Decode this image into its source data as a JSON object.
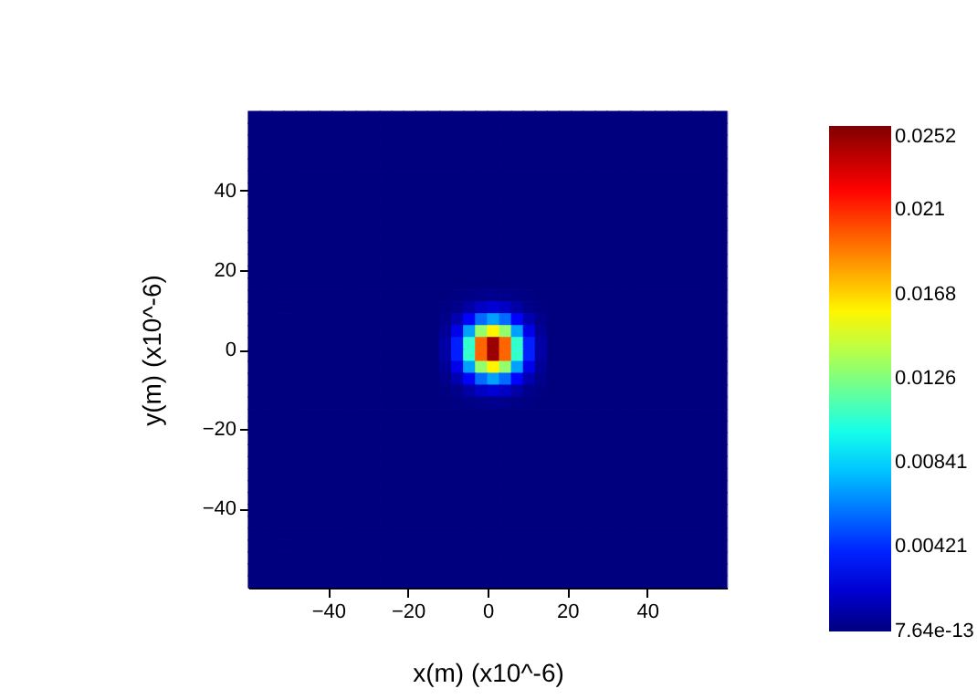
{
  "chart_data": {
    "type": "heatmap",
    "xlabel": "x(m) (x10^-6)",
    "ylabel": "y(m) (x10^-6)",
    "x": [
      -58.5,
      -55.5,
      -52.5,
      -49.5,
      -46.5,
      -43.5,
      -40.5,
      -37.5,
      -34.5,
      -31.5,
      -28.5,
      -25.5,
      -22.5,
      -19.5,
      -16.5,
      -13.5,
      -10.5,
      -7.5,
      -4.5,
      -1.5,
      1.5,
      4.5,
      7.5,
      10.5,
      13.5,
      16.5,
      19.5,
      22.5,
      25.5,
      28.5,
      31.5,
      34.5,
      37.5,
      40.5,
      43.5,
      46.5,
      49.5,
      52.5,
      55.5,
      58.5
    ],
    "y": [
      58.5,
      55.5,
      52.5,
      49.5,
      46.5,
      43.5,
      40.5,
      37.5,
      34.5,
      31.5,
      28.5,
      25.5,
      22.5,
      19.5,
      16.5,
      13.5,
      10.5,
      7.5,
      4.5,
      1.5,
      -1.5,
      -4.5,
      -7.5,
      -10.5,
      -13.5,
      -16.5,
      -19.5,
      -22.5,
      -25.5,
      -28.5,
      -31.5,
      -34.5,
      -37.5,
      -40.5,
      -43.5,
      -46.5,
      -49.5,
      -52.5,
      -55.5,
      -58.5
    ],
    "xlim": [
      -60,
      60
    ],
    "xticks": [
      -40,
      -20,
      0,
      20,
      40
    ],
    "ylim": [
      -60,
      60
    ],
    "yticks": [
      -40,
      -20,
      0,
      20,
      40
    ],
    "clim": [
      0,
      0.0252
    ],
    "cticks": [
      7.64e-13,
      0.00421,
      0.00841,
      0.0126,
      0.0168,
      0.021,
      0.0252
    ],
    "grid": false,
    "cells": [
      [
        0,
        0,
        0,
        0,
        0,
        0,
        0,
        0,
        0,
        0,
        0,
        0,
        0,
        0,
        0,
        0,
        0,
        0,
        0,
        0,
        0,
        0,
        0,
        0,
        0,
        0,
        0,
        0,
        0,
        0,
        0,
        0,
        0,
        0,
        0,
        0,
        0,
        0,
        0,
        0
      ],
      [
        0,
        0,
        0,
        0,
        0,
        0,
        0,
        0,
        0,
        0,
        0,
        0,
        0,
        0,
        0,
        0,
        0,
        0,
        0,
        0,
        0,
        0,
        0,
        0,
        0,
        0,
        0,
        0,
        0,
        0,
        0,
        0,
        0,
        0,
        0,
        0,
        0,
        0,
        0,
        0
      ],
      [
        0,
        0,
        0,
        0,
        0,
        0,
        0,
        0,
        0,
        0,
        0,
        0,
        0,
        0,
        0,
        0,
        0,
        0,
        0,
        0,
        0,
        0,
        0,
        0,
        0,
        0,
        0,
        0,
        0,
        0,
        0,
        0,
        0,
        0,
        0,
        0,
        0,
        0,
        0,
        0
      ],
      [
        0,
        0,
        0,
        0,
        0,
        0,
        0,
        0,
        0,
        0,
        0,
        0,
        0,
        0,
        0,
        0,
        0,
        0,
        0,
        0,
        0,
        0,
        0,
        0,
        0,
        0,
        0,
        0,
        0,
        0,
        0,
        0,
        0,
        0,
        0,
        0,
        0,
        0,
        0,
        0
      ],
      [
        0,
        0,
        0,
        0,
        0,
        0,
        0,
        0,
        0,
        0,
        0,
        0,
        0,
        0,
        0,
        0,
        0,
        0,
        0,
        0,
        0,
        0,
        0,
        0,
        0,
        0,
        0,
        0,
        0,
        0,
        0,
        0,
        0,
        0,
        0,
        0,
        0,
        0,
        0,
        0
      ],
      [
        0,
        0,
        0,
        0,
        0,
        0,
        0,
        0,
        0,
        0,
        0,
        0,
        0,
        0,
        0,
        0,
        0,
        0,
        0,
        0,
        0,
        0,
        0,
        0,
        0,
        0,
        0,
        0,
        0,
        0,
        0,
        0,
        0,
        0,
        0,
        0,
        0,
        0,
        0,
        0
      ],
      [
        0,
        0,
        0,
        0,
        0,
        0,
        0,
        0,
        0,
        0,
        0,
        0,
        0,
        0,
        0,
        0,
        0,
        0,
        0,
        0,
        0,
        0,
        0,
        0,
        0,
        0,
        0,
        0,
        0,
        0,
        0,
        0,
        0,
        0,
        0,
        0,
        0,
        0,
        0,
        0
      ],
      [
        0,
        0,
        0,
        0,
        0,
        0,
        0,
        0,
        0,
        0,
        0,
        0,
        0,
        0,
        0,
        0,
        0,
        0,
        0,
        0,
        0,
        0,
        0,
        0,
        0,
        0,
        0,
        0,
        0,
        0,
        0,
        0,
        0,
        0,
        0,
        0,
        0,
        0,
        0,
        0
      ],
      [
        0,
        0,
        0,
        0,
        0,
        0,
        0,
        0,
        0,
        0,
        0,
        0,
        0,
        0,
        0,
        0,
        0,
        0,
        0,
        0,
        0,
        0,
        0,
        0,
        0,
        0,
        0,
        0,
        0,
        0,
        0,
        0,
        0,
        0,
        0,
        0,
        0,
        0,
        0,
        0
      ],
      [
        0,
        0,
        0,
        0,
        0,
        0,
        0,
        0,
        0,
        0,
        0,
        0,
        0,
        0,
        0,
        0,
        0,
        0,
        0,
        0,
        0,
        0,
        0,
        0,
        0,
        0,
        0,
        0,
        0,
        0,
        0,
        0,
        0,
        0,
        0,
        0,
        0,
        0,
        0,
        0
      ],
      [
        0,
        0,
        0,
        0,
        0,
        0,
        0,
        0,
        0,
        0,
        0,
        0,
        0,
        0,
        0,
        0,
        0,
        0,
        0,
        0,
        0,
        0,
        0,
        0,
        0,
        0,
        0,
        0,
        0,
        0,
        0,
        0,
        0,
        0,
        0,
        0,
        0,
        0,
        0,
        0
      ],
      [
        0,
        0,
        0,
        0,
        0,
        0,
        0,
        0,
        0,
        0,
        0,
        0,
        0,
        0,
        0,
        0,
        0,
        0,
        0,
        0,
        0,
        0,
        0,
        0,
        0,
        0,
        0,
        0,
        0,
        0,
        0,
        0,
        0,
        0,
        0,
        0,
        0,
        0,
        0,
        0
      ],
      [
        0,
        0,
        0,
        0,
        0,
        0,
        0,
        0,
        0,
        0,
        0,
        0,
        0,
        0,
        0,
        0,
        0,
        0,
        0,
        0,
        0,
        0,
        0,
        0,
        0,
        0,
        0,
        0,
        0,
        0,
        0,
        0,
        0,
        0,
        0,
        0,
        0,
        0,
        0,
        0
      ],
      [
        0,
        0,
        0,
        0,
        0,
        0,
        0,
        0,
        0,
        0,
        0,
        0,
        0,
        0,
        0,
        0,
        0,
        0,
        0,
        0,
        0,
        0,
        0,
        0,
        0,
        0,
        0,
        0,
        0,
        0,
        0,
        0,
        0,
        0,
        0,
        0,
        0,
        0,
        0,
        0
      ],
      [
        0,
        0,
        0,
        0,
        0,
        0,
        0,
        0,
        0,
        0,
        0,
        0,
        0,
        0,
        0,
        0,
        0,
        0,
        0,
        0,
        0,
        0,
        0,
        0,
        0,
        0,
        0,
        0,
        0,
        0,
        0,
        0,
        0,
        0,
        0,
        0,
        0,
        0,
        0,
        0
      ],
      [
        0,
        0,
        0,
        0,
        0,
        0,
        0,
        0,
        0,
        0,
        0,
        0,
        0,
        0,
        0,
        0,
        0,
        0.0001,
        0.0002,
        0.0003,
        0.0004,
        0.0003,
        0.0002,
        0.0001,
        0,
        0,
        0,
        0,
        0,
        0,
        0,
        0,
        0,
        0,
        0,
        0,
        0,
        0,
        0,
        0
      ],
      [
        0,
        0,
        0,
        0,
        0,
        0,
        0,
        0,
        0,
        0,
        0,
        0,
        0,
        0,
        0,
        0,
        0.0001,
        0.0003,
        0.0009,
        0.0017,
        0.0021,
        0.0017,
        0.0009,
        0.0003,
        0.0001,
        0,
        0,
        0,
        0,
        0,
        0,
        0,
        0,
        0,
        0,
        0,
        0,
        0,
        0,
        0
      ],
      [
        0,
        0,
        0,
        0,
        0,
        0,
        0,
        0,
        0,
        0,
        0,
        0,
        0,
        0,
        0,
        0,
        0.0003,
        0.0012,
        0.0032,
        0.0058,
        0.0071,
        0.0058,
        0.0032,
        0.0012,
        0.0003,
        0,
        0,
        0,
        0,
        0,
        0,
        0,
        0,
        0,
        0,
        0,
        0,
        0,
        0,
        0
      ],
      [
        0,
        0,
        0,
        0,
        0,
        0,
        0,
        0,
        0,
        0,
        0,
        0,
        0,
        0,
        0,
        0,
        0.0006,
        0.0026,
        0.0071,
        0.0131,
        0.016,
        0.0131,
        0.0071,
        0.0026,
        0.0006,
        0,
        0,
        0,
        0,
        0,
        0,
        0,
        0,
        0,
        0,
        0,
        0,
        0,
        0,
        0
      ],
      [
        0,
        0,
        0,
        0,
        0,
        0,
        0,
        0,
        0,
        0,
        0,
        0,
        0,
        0,
        0,
        0,
        0.0009,
        0.0039,
        0.0107,
        0.0196,
        0.0245,
        0.0196,
        0.0107,
        0.0039,
        0.0009,
        0,
        0,
        0,
        0,
        0,
        0,
        0,
        0,
        0,
        0,
        0,
        0,
        0,
        0,
        0
      ],
      [
        0,
        0,
        0,
        0,
        0,
        0,
        0,
        0,
        0,
        0,
        0,
        0,
        0,
        0,
        0,
        0,
        0.0009,
        0.0039,
        0.0107,
        0.0196,
        0.0245,
        0.0196,
        0.0107,
        0.0039,
        0.0009,
        0,
        0,
        0,
        0,
        0,
        0,
        0,
        0,
        0,
        0,
        0,
        0,
        0,
        0,
        0
      ],
      [
        0,
        0,
        0,
        0,
        0,
        0,
        0,
        0,
        0,
        0,
        0,
        0,
        0,
        0,
        0,
        0,
        0.0006,
        0.0026,
        0.0071,
        0.0131,
        0.016,
        0.0131,
        0.0071,
        0.0026,
        0.0006,
        0,
        0,
        0,
        0,
        0,
        0,
        0,
        0,
        0,
        0,
        0,
        0,
        0,
        0,
        0
      ],
      [
        0,
        0,
        0,
        0,
        0,
        0,
        0,
        0,
        0,
        0,
        0,
        0,
        0,
        0,
        0,
        0,
        0.0003,
        0.0012,
        0.0032,
        0.0058,
        0.0071,
        0.0058,
        0.0032,
        0.0012,
        0.0003,
        0,
        0,
        0,
        0,
        0,
        0,
        0,
        0,
        0,
        0,
        0,
        0,
        0,
        0,
        0
      ],
      [
        0,
        0,
        0,
        0,
        0,
        0,
        0,
        0,
        0,
        0,
        0,
        0,
        0,
        0,
        0,
        0,
        0.0001,
        0.0003,
        0.0009,
        0.0017,
        0.0021,
        0.0017,
        0.0009,
        0.0003,
        0.0001,
        0,
        0,
        0,
        0,
        0,
        0,
        0,
        0,
        0,
        0,
        0,
        0,
        0,
        0,
        0
      ],
      [
        0,
        0,
        0,
        0,
        0,
        0,
        0,
        0,
        0,
        0,
        0,
        0,
        0,
        0,
        0,
        0,
        0,
        0.0001,
        0.0002,
        0.0003,
        0.0004,
        0.0003,
        0.0002,
        0.0001,
        0,
        0,
        0,
        0,
        0,
        0,
        0,
        0,
        0,
        0,
        0,
        0,
        0,
        0,
        0,
        0
      ],
      [
        0,
        0,
        0,
        0,
        0,
        0,
        0,
        0,
        0,
        0,
        0,
        0,
        0,
        0,
        0,
        0,
        0,
        0,
        0,
        0,
        0,
        0,
        0,
        0,
        0,
        0,
        0,
        0,
        0,
        0,
        0,
        0,
        0,
        0,
        0,
        0,
        0,
        0,
        0,
        0
      ],
      [
        0,
        0,
        0,
        0,
        0,
        0,
        0,
        0,
        0,
        0,
        0,
        0,
        0,
        0,
        0,
        0,
        0,
        0,
        0,
        0,
        0,
        0,
        0,
        0,
        0,
        0,
        0,
        0,
        0,
        0,
        0,
        0,
        0,
        0,
        0,
        0,
        0,
        0,
        0,
        0
      ],
      [
        0,
        0,
        0,
        0,
        0,
        0,
        0,
        0,
        0,
        0,
        0,
        0,
        0,
        0,
        0,
        0,
        0,
        0,
        0,
        0,
        0,
        0,
        0,
        0,
        0,
        0,
        0,
        0,
        0,
        0,
        0,
        0,
        0,
        0,
        0,
        0,
        0,
        0,
        0,
        0
      ],
      [
        0,
        0,
        0,
        0,
        0,
        0,
        0,
        0,
        0,
        0,
        0,
        0,
        0,
        0,
        0,
        0,
        0,
        0,
        0,
        0,
        0,
        0,
        0,
        0,
        0,
        0,
        0,
        0,
        0,
        0,
        0,
        0,
        0,
        0,
        0,
        0,
        0,
        0,
        0,
        0
      ],
      [
        0,
        0,
        0,
        0,
        0,
        0,
        0,
        0,
        0,
        0,
        0,
        0,
        0,
        0,
        0,
        0,
        0,
        0,
        0,
        0,
        0,
        0,
        0,
        0,
        0,
        0,
        0,
        0,
        0,
        0,
        0,
        0,
        0,
        0,
        0,
        0,
        0,
        0,
        0,
        0
      ],
      [
        0,
        0,
        0,
        0,
        0,
        0,
        0,
        0,
        0,
        0,
        0,
        0,
        0,
        0,
        0,
        0,
        0,
        0,
        0,
        0,
        0,
        0,
        0,
        0,
        0,
        0,
        0,
        0,
        0,
        0,
        0,
        0,
        0,
        0,
        0,
        0,
        0,
        0,
        0,
        0
      ],
      [
        0,
        0,
        0,
        0,
        0,
        0,
        0,
        0,
        0,
        0,
        0,
        0,
        0,
        0,
        0,
        0,
        0,
        0,
        0,
        0,
        0,
        0,
        0,
        0,
        0,
        0,
        0,
        0,
        0,
        0,
        0,
        0,
        0,
        0,
        0,
        0,
        0,
        0,
        0,
        0
      ],
      [
        0,
        0,
        0,
        0,
        0,
        0,
        0,
        0,
        0,
        0,
        0,
        0,
        0,
        0,
        0,
        0,
        0,
        0,
        0,
        0,
        0,
        0,
        0,
        0,
        0,
        0,
        0,
        0,
        0,
        0,
        0,
        0,
        0,
        0,
        0,
        0,
        0,
        0,
        0,
        0
      ],
      [
        0,
        0,
        0,
        0,
        0,
        0,
        0,
        0,
        0,
        0,
        0,
        0,
        0,
        0,
        0,
        0,
        0,
        0,
        0,
        0,
        0,
        0,
        0,
        0,
        0,
        0,
        0,
        0,
        0,
        0,
        0,
        0,
        0,
        0,
        0,
        0,
        0,
        0,
        0,
        0
      ],
      [
        0,
        0,
        0,
        0,
        0,
        0,
        0,
        0,
        0,
        0,
        0,
        0,
        0,
        0,
        0,
        0,
        0,
        0,
        0,
        0,
        0,
        0,
        0,
        0,
        0,
        0,
        0,
        0,
        0,
        0,
        0,
        0,
        0,
        0,
        0,
        0,
        0,
        0,
        0,
        0
      ],
      [
        0,
        0,
        0,
        0,
        0,
        0,
        0,
        0,
        0,
        0,
        0,
        0,
        0,
        0,
        0,
        0,
        0,
        0,
        0,
        0,
        0,
        0,
        0,
        0,
        0,
        0,
        0,
        0,
        0,
        0,
        0,
        0,
        0,
        0,
        0,
        0,
        0,
        0,
        0,
        0
      ],
      [
        0,
        0,
        0,
        0,
        0,
        0,
        0,
        0,
        0,
        0,
        0,
        0,
        0,
        0,
        0,
        0,
        0,
        0,
        0,
        0,
        0,
        0,
        0,
        0,
        0,
        0,
        0,
        0,
        0,
        0,
        0,
        0,
        0,
        0,
        0,
        0,
        0,
        0,
        0,
        0
      ],
      [
        0,
        0,
        0,
        0,
        0,
        0,
        0,
        0,
        0,
        0,
        0,
        0,
        0,
        0,
        0,
        0,
        0,
        0,
        0,
        0,
        0,
        0,
        0,
        0,
        0,
        0,
        0,
        0,
        0,
        0,
        0,
        0,
        0,
        0,
        0,
        0,
        0,
        0,
        0,
        0
      ],
      [
        0,
        0,
        0,
        0,
        0,
        0,
        0,
        0,
        0,
        0,
        0,
        0,
        0,
        0,
        0,
        0,
        0,
        0,
        0,
        0,
        0,
        0,
        0,
        0,
        0,
        0,
        0,
        0,
        0,
        0,
        0,
        0,
        0,
        0,
        0,
        0,
        0,
        0,
        0,
        0
      ],
      [
        0,
        0,
        0,
        0,
        0,
        0,
        0,
        0,
        0,
        0,
        0,
        0,
        0,
        0,
        0,
        0,
        0,
        0,
        0,
        0,
        0,
        0,
        0,
        0,
        0,
        0,
        0,
        0,
        0,
        0,
        0,
        0,
        0,
        0,
        0,
        0,
        0,
        0,
        0,
        0
      ]
    ]
  }
}
